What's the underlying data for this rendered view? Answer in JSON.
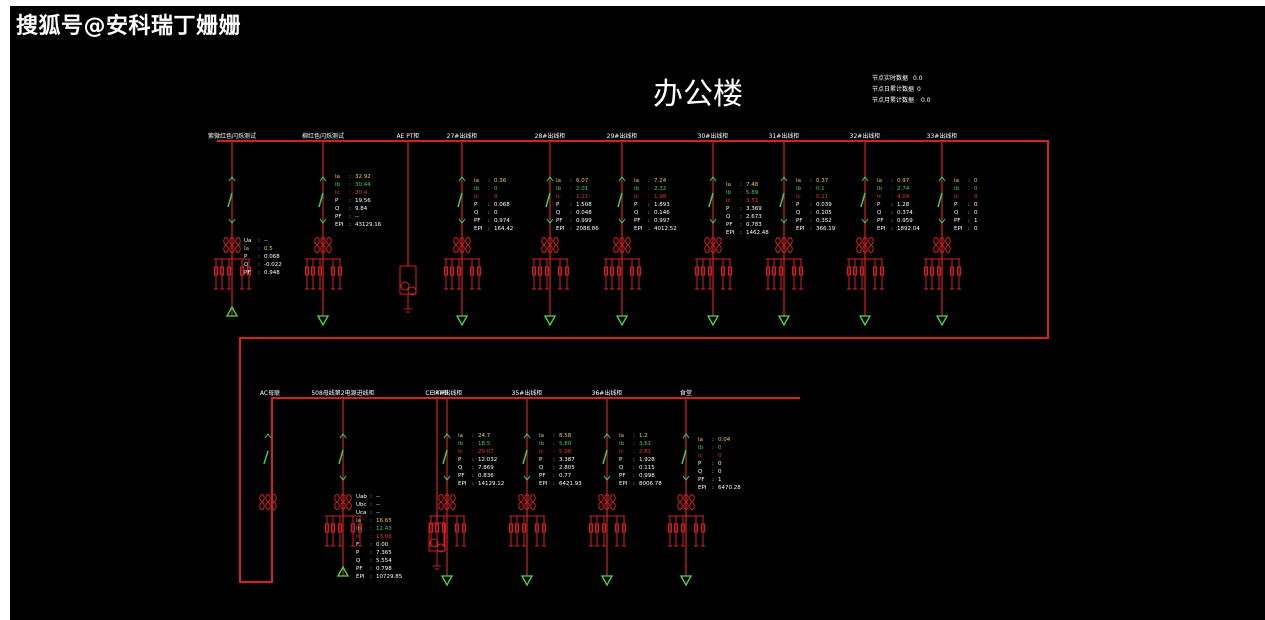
{
  "watermark": "搜狐号@安科瑞丁姗姗",
  "title": "办公楼",
  "stats": [
    {
      "label": "节点实时数据",
      "value": "0.0"
    },
    {
      "label": "节点日累计数据",
      "value": "0"
    },
    {
      "label": "节点月累计数据",
      "value": "0.0"
    }
  ],
  "colors": {
    "bus": "#d42020",
    "ia": "#e8d040",
    "ib": "#39d04a",
    "ic": "#e53030",
    "white": "#ffffff",
    "ground": "#4ddc3c"
  },
  "row1": [
    {
      "name": "紫微红色闪烁测试",
      "meters": [
        [
          "Ua",
          ":",
          "--"
        ],
        [
          "Ia",
          ":",
          "0.5"
        ],
        [
          "P",
          ":",
          "0.068"
        ],
        [
          "Q",
          ":",
          "-0.022"
        ],
        [
          "PF",
          ":",
          "0.948"
        ]
      ]
    },
    {
      "name": "柳红色闪烁测试",
      "meters": [
        [
          "Ia",
          ":",
          "32.92"
        ],
        [
          "Ib",
          ":",
          "30.44"
        ],
        [
          "Ic",
          ":",
          "30.4"
        ],
        [
          "P",
          ":",
          "19.56"
        ],
        [
          "Q",
          ":",
          "9.84"
        ],
        [
          "PF",
          ":",
          "--"
        ],
        [
          "EPI",
          ":",
          "43129.16"
        ]
      ]
    },
    {
      "name": "AE PT柜",
      "meters": []
    },
    {
      "name": "27#出线柜",
      "meters": [
        [
          "Ia",
          ":",
          "0.36"
        ],
        [
          "Ib",
          ":",
          "0"
        ],
        [
          "Ic",
          ":",
          "0"
        ],
        [
          "P",
          ":",
          "0.068"
        ],
        [
          "Q",
          ":",
          "0"
        ],
        [
          "PF",
          ":",
          "0.974"
        ],
        [
          "EPI",
          ":",
          "164.42"
        ]
      ]
    },
    {
      "name": "28#出线柜",
      "meters": [
        [
          "Ia",
          ":",
          "6.07"
        ],
        [
          "Ib",
          ":",
          "2.01"
        ],
        [
          "Ic",
          ":",
          "1.11"
        ],
        [
          "P",
          ":",
          "1.508"
        ],
        [
          "Q",
          ":",
          "0.048"
        ],
        [
          "PF",
          ":",
          "0.999"
        ],
        [
          "EPI",
          ":",
          "2088.86"
        ]
      ]
    },
    {
      "name": "29#出线柜",
      "meters": [
        [
          "Ia",
          ":",
          "7.24"
        ],
        [
          "Ib",
          ":",
          "2.32"
        ],
        [
          "Ic",
          ":",
          "1.98"
        ],
        [
          "P",
          ":",
          "1.893"
        ],
        [
          "Q",
          ":",
          "0.146"
        ],
        [
          "PF",
          ":",
          "0.997"
        ],
        [
          "EPI",
          ":",
          "4012.52"
        ]
      ]
    },
    {
      "name": "30#出线柜",
      "meters": [
        [
          "Ia",
          ":",
          "7.48"
        ],
        [
          "Ib",
          ":",
          "5.89"
        ],
        [
          "Ic",
          ":",
          "3.51"
        ],
        [
          "P",
          ":",
          "3.369"
        ],
        [
          "Q",
          ":",
          "2.673"
        ],
        [
          "PF",
          ":",
          "0.783"
        ],
        [
          "EPI",
          ":",
          "1462.48"
        ]
      ]
    },
    {
      "name": "31#出线柜",
      "meters": [
        [
          "Ia",
          ":",
          "0.37"
        ],
        [
          "Ib",
          ":",
          "0.1"
        ],
        [
          "Ic",
          ":",
          "0.11"
        ],
        [
          "P",
          ":",
          "0.039"
        ],
        [
          "Q",
          ":",
          "0.105"
        ],
        [
          "PF",
          ":",
          "0.352"
        ],
        [
          "EPI",
          ":",
          "366.19"
        ]
      ]
    },
    {
      "name": "32#出线柜",
      "meters": [
        [
          "Ia",
          ":",
          "0.97"
        ],
        [
          "Ib",
          ":",
          "2.74"
        ],
        [
          "Ic",
          ":",
          "4.04"
        ],
        [
          "P",
          ":",
          "1.28"
        ],
        [
          "Q",
          ":",
          "0.374"
        ],
        [
          "PF",
          ":",
          "0.959"
        ],
        [
          "EPI",
          ":",
          "1892.04"
        ]
      ]
    },
    {
      "name": "33#出线柜",
      "meters": [
        [
          "Ia",
          ":",
          "0"
        ],
        [
          "Ib",
          ":",
          "0"
        ],
        [
          "Ic",
          ":",
          "0"
        ],
        [
          "P",
          ":",
          "0"
        ],
        [
          "Q",
          ":",
          "0"
        ],
        [
          "PF",
          ":",
          "1"
        ],
        [
          "EPI",
          ":",
          "0"
        ]
      ]
    }
  ],
  "row2": [
    {
      "name": "AC母联",
      "meters": []
    },
    {
      "name": "508母线第2电源进线柜",
      "meters": [
        [
          "Uab",
          ":",
          "--"
        ],
        [
          "Ubc",
          ":",
          "--"
        ],
        [
          "Uca",
          ":",
          "--"
        ],
        [
          "Ia",
          ":",
          "16.65"
        ],
        [
          "Ib",
          ":",
          "12.43"
        ],
        [
          "Ic",
          ":",
          "13.06"
        ],
        [
          "F",
          ":",
          "0.00"
        ],
        [
          "P",
          ":",
          "7.365"
        ],
        [
          "Q",
          ":",
          "5.554"
        ],
        [
          "PF",
          ":",
          "0.798"
        ],
        [
          "EPI",
          ":",
          "10729.85"
        ]
      ]
    },
    {
      "name": "CE PT柜",
      "meters": []
    },
    {
      "name": "34#出线柜",
      "meters": [
        [
          "Ia",
          ":",
          "24.7"
        ],
        [
          "Ib",
          ":",
          "18.5"
        ],
        [
          "Ic",
          ":",
          "20.07"
        ],
        [
          "P",
          ":",
          "12.032"
        ],
        [
          "Q",
          ":",
          "7.869"
        ],
        [
          "PF",
          ":",
          "0.836"
        ],
        [
          "EPI",
          ":",
          "14129.12"
        ]
      ]
    },
    {
      "name": "35#出线柜",
      "meters": [
        [
          "Ia",
          ":",
          "8.58"
        ],
        [
          "Ib",
          ":",
          "5.80"
        ],
        [
          "Ic",
          ":",
          "5.98"
        ],
        [
          "P",
          ":",
          "3.387"
        ],
        [
          "Q",
          ":",
          "2.805"
        ],
        [
          "PF",
          ":",
          "0.77"
        ],
        [
          "EPI",
          ":",
          "6421.93"
        ]
      ]
    },
    {
      "name": "36#出线柜",
      "meters": [
        [
          "Ia",
          ":",
          "1.2"
        ],
        [
          "Ib",
          ":",
          "3.61"
        ],
        [
          "Ic",
          ":",
          "2.81"
        ],
        [
          "P",
          ":",
          "1.928"
        ],
        [
          "Q",
          ":",
          "0.115"
        ],
        [
          "PF",
          ":",
          "0.998"
        ],
        [
          "EPI",
          ":",
          "8006.78"
        ]
      ]
    },
    {
      "name": "食堂",
      "meters": [
        [
          "Ia",
          ":",
          "0.04"
        ],
        [
          "Ib",
          ":",
          "0"
        ],
        [
          "Ic",
          ":",
          "0"
        ],
        [
          "P",
          ":",
          "0"
        ],
        [
          "Q",
          ":",
          "0"
        ],
        [
          "PF",
          ":",
          "1"
        ],
        [
          "EPI",
          ":",
          "6470.28"
        ]
      ]
    }
  ]
}
